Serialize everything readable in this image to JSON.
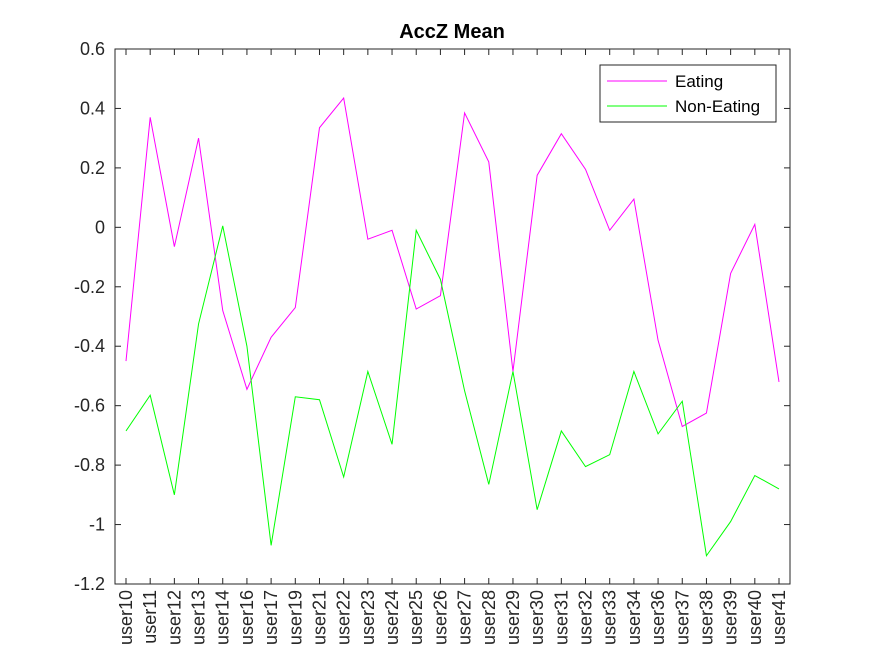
{
  "chart_data": {
    "type": "line",
    "title": "AccZ Mean",
    "xlabel": "",
    "ylabel": "",
    "categories": [
      "user10",
      "user11",
      "user12",
      "user13",
      "user14",
      "user16",
      "user17",
      "user19",
      "user21",
      "user22",
      "user23",
      "user24",
      "user25",
      "user26",
      "user27",
      "user28",
      "user29",
      "user30",
      "user31",
      "user32",
      "user33",
      "user34",
      "user36",
      "user37",
      "user38",
      "user39",
      "user40",
      "user41"
    ],
    "ylim": [
      -1.2,
      0.6
    ],
    "yticks": [
      "0.6",
      "0.4",
      "0.2",
      "0",
      "-0.2",
      "-0.4",
      "-0.6",
      "-0.8",
      "-1",
      "-1.2"
    ],
    "ytick_values": [
      0.6,
      0.4,
      0.2,
      0,
      -0.2,
      -0.4,
      -0.6,
      -0.8,
      -1,
      -1.2
    ],
    "legend_position": "top-right",
    "grid": false,
    "series": [
      {
        "name": "Eating",
        "color": "#ff00ff",
        "values": [
          -0.45,
          0.37,
          -0.065,
          0.3,
          -0.28,
          -0.545,
          -0.37,
          -0.27,
          0.335,
          0.435,
          -0.04,
          -0.01,
          -0.275,
          -0.23,
          0.385,
          0.22,
          -0.485,
          0.175,
          0.315,
          0.195,
          -0.01,
          0.095,
          -0.38,
          -0.67,
          -0.625,
          -0.155,
          0.01,
          -0.52
        ]
      },
      {
        "name": "Non-Eating",
        "color": "#00ff00",
        "values": [
          -0.685,
          -0.565,
          -0.9,
          -0.325,
          0.005,
          -0.4,
          -1.07,
          -0.57,
          -0.58,
          -0.84,
          -0.485,
          -0.73,
          -0.01,
          -0.175,
          -0.55,
          -0.865,
          -0.485,
          -0.95,
          -0.685,
          -0.805,
          -0.765,
          -0.485,
          -0.695,
          -0.585,
          -1.105,
          -0.99,
          -0.835,
          -0.88
        ]
      }
    ]
  }
}
